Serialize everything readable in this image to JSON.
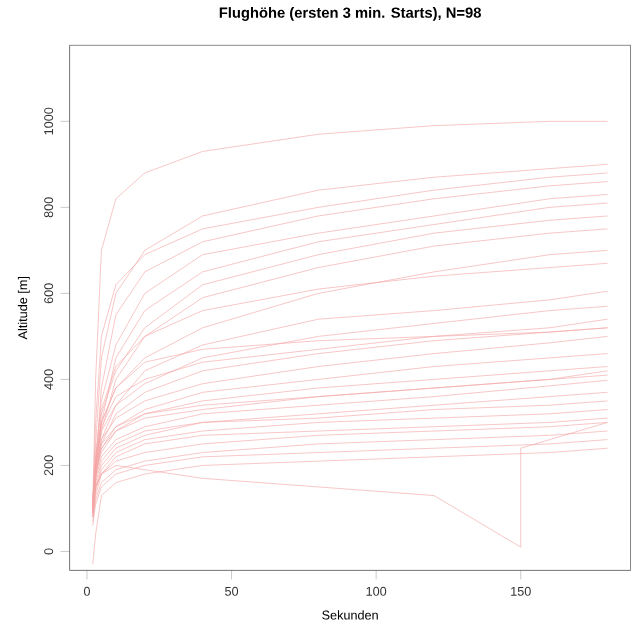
{
  "chart_data": {
    "type": "line",
    "title": "Flughöhe (ersten 3 min. Starts), N=98",
    "xlabel": "Sekunden",
    "ylabel": "Altitude [m]",
    "xlim": [
      -6,
      188
    ],
    "ylim": [
      -44,
      1177
    ],
    "xticks": [
      0,
      50,
      100,
      150
    ],
    "yticks": [
      0,
      200,
      400,
      600,
      800,
      1000
    ],
    "grid": false,
    "marker": "none",
    "line_style": "solid",
    "x": [
      2,
      3,
      5,
      10,
      20,
      40,
      80,
      120,
      160,
      180
    ],
    "series": [
      {
        "color": "#f4a6a6",
        "values": [
          100,
          400,
          700,
          820,
          880,
          930,
          970,
          990,
          1000,
          1000
        ]
      },
      {
        "color": "#f4a6a6",
        "values": [
          90,
          250,
          450,
          600,
          700,
          780,
          840,
          870,
          890,
          900
        ]
      },
      {
        "color": "#f4a6a6",
        "values": [
          110,
          300,
          500,
          620,
          690,
          750,
          800,
          840,
          870,
          880
        ]
      },
      {
        "color": "#f4a6a6",
        "values": [
          100,
          200,
          380,
          550,
          650,
          720,
          780,
          820,
          850,
          860
        ]
      },
      {
        "color": "#f4a6a6",
        "values": [
          120,
          220,
          350,
          480,
          600,
          690,
          740,
          780,
          820,
          830
        ]
      },
      {
        "color": "#f4a6a6",
        "values": [
          90,
          180,
          300,
          450,
          560,
          650,
          720,
          760,
          800,
          810
        ]
      },
      {
        "color": "#f4a6a6",
        "values": [
          100,
          190,
          320,
          420,
          520,
          620,
          690,
          740,
          770,
          780
        ]
      },
      {
        "color": "#f4a6a6",
        "values": [
          80,
          160,
          280,
          400,
          500,
          590,
          660,
          710,
          740,
          750
        ]
      },
      {
        "color": "#f4a6a6",
        "values": [
          100,
          210,
          300,
          380,
          450,
          520,
          600,
          650,
          690,
          700
        ]
      },
      {
        "color": "#f4a6a6",
        "values": [
          110,
          220,
          330,
          430,
          500,
          560,
          610,
          640,
          660,
          670
        ]
      },
      {
        "color": "#f4a6a6",
        "values": [
          90,
          180,
          260,
          340,
          420,
          480,
          540,
          560,
          585,
          605
        ]
      },
      {
        "color": "#f4a6a6",
        "values": [
          100,
          200,
          280,
          340,
          390,
          450,
          500,
          530,
          560,
          570
        ]
      },
      {
        "color": "#f4a6a6",
        "values": [
          80,
          170,
          250,
          320,
          370,
          420,
          460,
          490,
          510,
          520
        ]
      },
      {
        "color": "#f4a6a6",
        "values": [
          120,
          200,
          260,
          310,
          350,
          390,
          430,
          460,
          485,
          500
        ]
      },
      {
        "color": "#f4a6a6",
        "values": [
          100,
          190,
          240,
          290,
          330,
          370,
          400,
          430,
          450,
          460
        ]
      },
      {
        "color": "#f4a6a6",
        "values": [
          90,
          180,
          230,
          280,
          320,
          350,
          380,
          400,
          420,
          430
        ]
      },
      {
        "color": "#f4a6a6",
        "values": [
          110,
          200,
          250,
          290,
          320,
          340,
          360,
          380,
          400,
          410
        ]
      },
      {
        "color": "#f4a6a6",
        "values": [
          100,
          170,
          220,
          260,
          290,
          320,
          340,
          360,
          385,
          398
        ]
      },
      {
        "color": "#f4a6a6",
        "values": [
          80,
          150,
          200,
          240,
          270,
          300,
          320,
          340,
          360,
          370
        ]
      },
      {
        "color": "#f4a6a6",
        "values": [
          100,
          160,
          210,
          250,
          280,
          300,
          310,
          330,
          340,
          350
        ]
      },
      {
        "color": "#f4a6a6",
        "values": [
          90,
          140,
          190,
          230,
          260,
          280,
          300,
          310,
          320,
          330
        ]
      },
      {
        "color": "#f4a6a6",
        "values": [
          70,
          130,
          180,
          220,
          250,
          270,
          280,
          290,
          300,
          310
        ]
      },
      {
        "color": "#f4a6a6",
        "values": [
          100,
          150,
          180,
          210,
          230,
          250,
          270,
          280,
          290,
          300
        ]
      },
      {
        "color": "#f4a6a6",
        "values": [
          80,
          120,
          160,
          190,
          210,
          230,
          250,
          260,
          270,
          280
        ]
      },
      {
        "color": "#f4a6a6",
        "values": [
          60,
          110,
          150,
          180,
          200,
          220,
          230,
          240,
          250,
          260
        ]
      },
      {
        "color": "#f4a6a6",
        "values": [
          -30,
          40,
          130,
          160,
          180,
          200,
          210,
          220,
          230,
          240
        ]
      },
      {
        "color": "#f4a6a6",
        "values": [
          100,
          180,
          240,
          280,
          310,
          330,
          360,
          380,
          400,
          420
        ]
      },
      {
        "color": "#f4a6a6",
        "values": [
          120,
          210,
          290,
          360,
          400,
          440,
          470,
          500,
          520,
          540
        ]
      },
      {
        "color": "#f4a6a6",
        "values": [
          100,
          200,
          300,
          380,
          440,
          470,
          490,
          500,
          510,
          520
        ]
      },
      {
        "color": "#f4a6a6",
        "x": [
          2,
          3,
          5,
          10,
          20,
          40,
          80,
          120,
          150,
          150,
          160,
          180
        ],
        "values": [
          90,
          150,
          180,
          200,
          190,
          170,
          150,
          130,
          10,
          240,
          260,
          300
        ]
      }
    ]
  }
}
